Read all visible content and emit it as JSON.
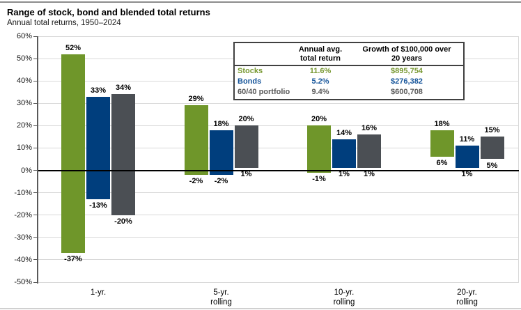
{
  "header": {
    "title": "Range of stock, bond and blended total returns",
    "subtitle": "Annual total returns, 1950–2024"
  },
  "summary_table": {
    "headers": {
      "return": [
        "Annual avg.",
        "total return"
      ],
      "growth": [
        "Growth of $100,000 over",
        "20 years"
      ]
    },
    "rows": [
      {
        "label": "Stocks",
        "avg_return": "11.6%",
        "growth": "$895,754",
        "color": "#76972f"
      },
      {
        "label": "Bonds",
        "avg_return": "5.2%",
        "growth": "$276,382",
        "color": "#15549a"
      },
      {
        "label": "60/40 portfolio",
        "avg_return": "9.4%",
        "growth": "$600,708",
        "color": "#595959"
      }
    ]
  },
  "chart_data": {
    "type": "bar",
    "subtype": "floating-range-columns",
    "title": "Range of stock, bond and blended total returns",
    "subtitle": "Annual total returns, 1950–2024",
    "categories": [
      [
        "1-yr."
      ],
      [
        "5-yr.",
        "rolling"
      ],
      [
        "10-yr.",
        "rolling"
      ],
      [
        "20-yr.",
        "rolling"
      ]
    ],
    "series": [
      {
        "name": "Stocks",
        "color": "#6f962a",
        "max": [
          52,
          29,
          20,
          18
        ],
        "min": [
          -37,
          -2,
          -1,
          6
        ]
      },
      {
        "name": "Bonds",
        "color": "#003e7d",
        "max": [
          33,
          18,
          14,
          11
        ],
        "min": [
          -13,
          -2,
          1,
          1
        ]
      },
      {
        "name": "60/40 portfolio",
        "color": "#4b4f54",
        "max": [
          34,
          20,
          16,
          15
        ],
        "min": [
          -20,
          1,
          1,
          5
        ]
      }
    ],
    "ylim": [
      -50,
      60
    ],
    "ytick_step": 10,
    "yticks": [
      "60%",
      "50%",
      "40%",
      "30%",
      "20%",
      "10%",
      "0%",
      "-10%",
      "-20%",
      "-30%",
      "-40%",
      "-50%"
    ],
    "label_format": "{value}%",
    "grid": "horizontal",
    "zero_line": true,
    "legend_position": "table-top-right",
    "colors": {
      "grid": "#d9d9d9",
      "zero_line": "#000000",
      "axis": "#595959",
      "label_text": "#000000"
    }
  }
}
